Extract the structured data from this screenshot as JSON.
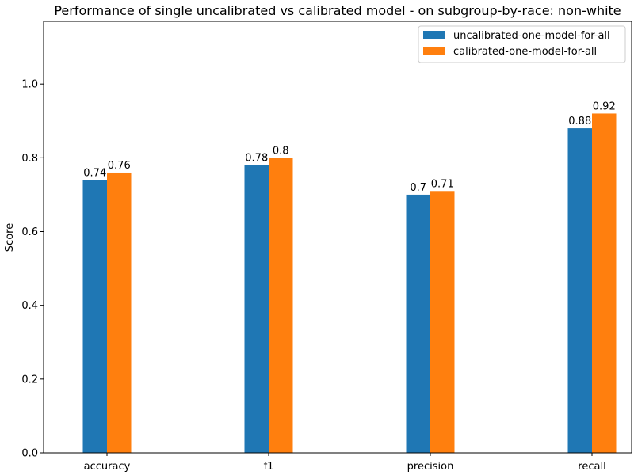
{
  "chart_data": {
    "type": "bar",
    "title": "Performance of single uncalibrated vs calibrated model - on subgroup-by-race: non-white",
    "xlabel": "",
    "ylabel": "Score",
    "categories": [
      "accuracy",
      "f1",
      "precision",
      "recall"
    ],
    "series": [
      {
        "name": "uncalibrated-one-model-for-all",
        "values": [
          0.74,
          0.78,
          0.7,
          0.88
        ],
        "color": "#1f77b4"
      },
      {
        "name": "calibrated-one-model-for-all",
        "values": [
          0.76,
          0.8,
          0.71,
          0.92
        ],
        "color": "#ff7f0e"
      }
    ],
    "data_labels": [
      [
        "0.74",
        "0.78",
        "0.7",
        "0.88"
      ],
      [
        "0.76",
        "0.8",
        "0.71",
        "0.92"
      ]
    ],
    "ylim": [
      0,
      1.17
    ],
    "yticks": [
      0.0,
      0.2,
      0.4,
      0.6,
      0.8,
      1.0
    ],
    "ytick_labels": [
      "0.0",
      "0.2",
      "0.4",
      "0.6",
      "0.8",
      "1.0"
    ],
    "grid": false,
    "legend_position": "top-right"
  }
}
